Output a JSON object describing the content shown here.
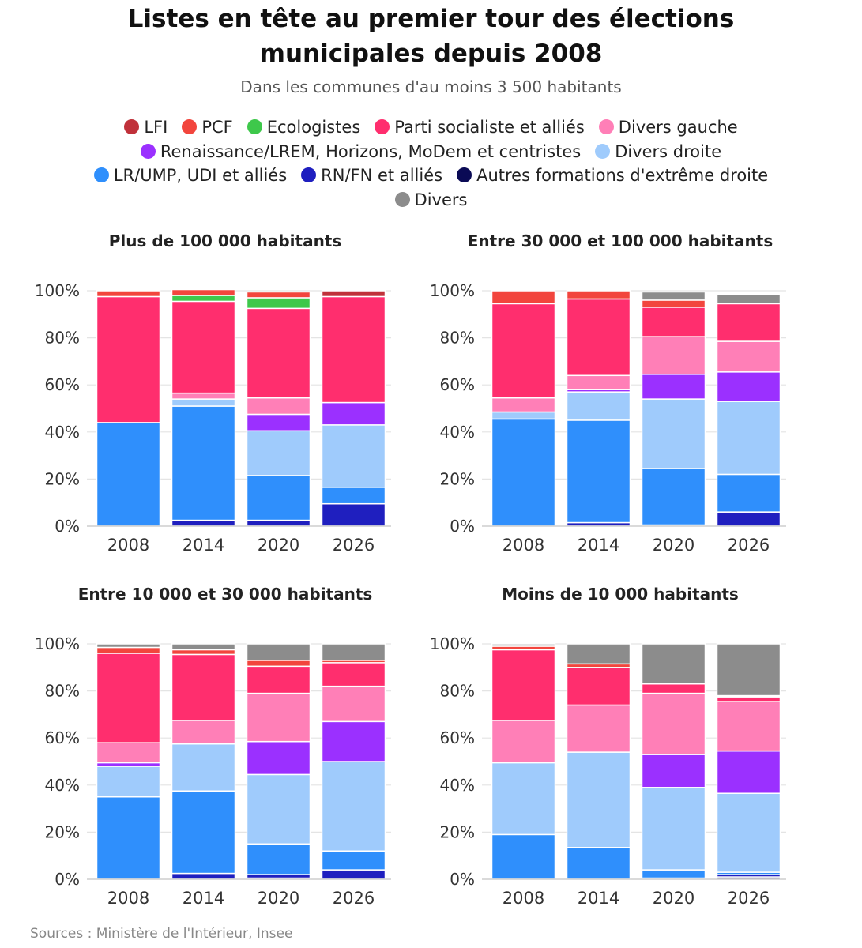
{
  "title_line1": "Listes en tête au premier tour des élections",
  "title_line2": "municipales depuis 2008",
  "subtitle": "Dans les communes d'au moins 3 500 habitants",
  "source": "Sources : Ministère de l'Intérieur, Insee",
  "legend": [
    {
      "label": "LFI",
      "color": "#c0313a"
    },
    {
      "label": "PCF",
      "color": "#f2453d"
    },
    {
      "label": "Ecologistes",
      "color": "#3ec84b"
    },
    {
      "label": "Parti socialiste et alliés",
      "color": "#ff2e6e"
    },
    {
      "label": "Divers gauche",
      "color": "#ff7fb7"
    },
    {
      "label": "Renaissance/LREM, Horizons, MoDem et centristes",
      "color": "#9b30ff"
    },
    {
      "label": "Divers droite",
      "color": "#9fcbfc"
    },
    {
      "label": "LR/UMP, UDI et alliés",
      "color": "#2f8ffc"
    },
    {
      "label": "RN/FN et alliés",
      "color": "#1f1fbf"
    },
    {
      "label": "Autres formations d'extrême droite",
      "color": "#0a0a55"
    },
    {
      "label": "Divers",
      "color": "#8c8c8c"
    }
  ],
  "chart_data": [
    {
      "type": "bar",
      "stacked": true,
      "title": "Plus de 100 000 habitants",
      "categories": [
        "2008",
        "2014",
        "2020",
        "2026"
      ],
      "ylim": [
        0,
        100
      ],
      "yticks": [
        "0%",
        "20%",
        "40%",
        "60%",
        "80%",
        "100%"
      ],
      "series": [
        {
          "name": "Autres formations d'extrême droite",
          "values": [
            0,
            0,
            0,
            0
          ]
        },
        {
          "name": "RN/FN et alliés",
          "values": [
            0,
            2.5,
            2.5,
            9.5
          ]
        },
        {
          "name": "LR/UMP, UDI et alliés",
          "values": [
            44,
            48.5,
            19,
            7
          ]
        },
        {
          "name": "Divers droite",
          "values": [
            0,
            3,
            19,
            26.5
          ]
        },
        {
          "name": "Renaissance/LREM, Horizons, MoDem et centristes",
          "values": [
            0,
            0,
            7,
            9.5
          ]
        },
        {
          "name": "Divers gauche",
          "values": [
            0,
            2.5,
            7,
            0
          ]
        },
        {
          "name": "Parti socialiste et alliés",
          "values": [
            53.5,
            39,
            38,
            45
          ]
        },
        {
          "name": "Ecologistes",
          "values": [
            0,
            2.5,
            4.5,
            0
          ]
        },
        {
          "name": "PCF",
          "values": [
            2.5,
            2.5,
            2.5,
            0
          ]
        },
        {
          "name": "LFI",
          "values": [
            0,
            0,
            0,
            2.5
          ]
        },
        {
          "name": "Divers",
          "values": [
            0,
            0,
            0,
            0
          ]
        }
      ]
    },
    {
      "type": "bar",
      "stacked": true,
      "title": "Entre 30 000 et 100 000 habitants",
      "categories": [
        "2008",
        "2014",
        "2020",
        "2026"
      ],
      "ylim": [
        0,
        100
      ],
      "yticks": [
        "0%",
        "20%",
        "40%",
        "60%",
        "80%",
        "100%"
      ],
      "series": [
        {
          "name": "Autres formations d'extrême droite",
          "values": [
            0,
            0,
            0,
            0
          ]
        },
        {
          "name": "RN/FN et alliés",
          "values": [
            0,
            1.5,
            0.5,
            6
          ]
        },
        {
          "name": "LR/UMP, UDI et alliés",
          "values": [
            45.5,
            43.5,
            24,
            16
          ]
        },
        {
          "name": "Divers droite",
          "values": [
            3,
            12,
            29.5,
            31
          ]
        },
        {
          "name": "Renaissance/LREM, Horizons, MoDem et centristes",
          "values": [
            0,
            1,
            10.5,
            12.5
          ]
        },
        {
          "name": "Divers gauche",
          "values": [
            6,
            6,
            16,
            13
          ]
        },
        {
          "name": "Parti socialiste et alliés",
          "values": [
            40,
            32.5,
            12.5,
            16
          ]
        },
        {
          "name": "Ecologistes",
          "values": [
            0,
            0,
            0,
            0
          ]
        },
        {
          "name": "PCF",
          "values": [
            5.5,
            3.5,
            3,
            0
          ]
        },
        {
          "name": "LFI",
          "values": [
            0,
            0,
            0,
            0
          ]
        },
        {
          "name": "Divers",
          "values": [
            0,
            0,
            3.5,
            4
          ]
        }
      ]
    },
    {
      "type": "bar",
      "stacked": true,
      "title": "Entre 10 000 et 30 000 habitants",
      "categories": [
        "2008",
        "2014",
        "2020",
        "2026"
      ],
      "ylim": [
        0,
        100
      ],
      "yticks": [
        "0%",
        "20%",
        "40%",
        "60%",
        "80%",
        "100%"
      ],
      "series": [
        {
          "name": "Autres formations d'extrême droite",
          "values": [
            0,
            0,
            0.5,
            0
          ]
        },
        {
          "name": "RN/FN et alliés",
          "values": [
            0,
            2.5,
            1.5,
            4
          ]
        },
        {
          "name": "LR/UMP, UDI et alliés",
          "values": [
            35,
            35,
            13,
            8
          ]
        },
        {
          "name": "Divers droite",
          "values": [
            13,
            20,
            29.5,
            38
          ]
        },
        {
          "name": "Renaissance/LREM, Horizons, MoDem et centristes",
          "values": [
            1.5,
            0,
            14,
            17
          ]
        },
        {
          "name": "Divers gauche",
          "values": [
            8.5,
            10,
            20.5,
            15
          ]
        },
        {
          "name": "Parti socialiste et alliés",
          "values": [
            38,
            28,
            11.5,
            10
          ]
        },
        {
          "name": "Ecologistes",
          "values": [
            0,
            0,
            0,
            0
          ]
        },
        {
          "name": "PCF",
          "values": [
            2.5,
            2,
            2.5,
            1
          ]
        },
        {
          "name": "LFI",
          "values": [
            0,
            0,
            0,
            0
          ]
        },
        {
          "name": "Divers",
          "values": [
            1.5,
            2.5,
            7,
            7
          ]
        }
      ]
    },
    {
      "type": "bar",
      "stacked": true,
      "title": "Moins de 10 000 habitants",
      "categories": [
        "2008",
        "2014",
        "2020",
        "2026"
      ],
      "ylim": [
        0,
        100
      ],
      "yticks": [
        "0%",
        "20%",
        "40%",
        "60%",
        "80%",
        "100%"
      ],
      "series": [
        {
          "name": "Autres formations d'extrême droite",
          "values": [
            0,
            0,
            0.3,
            1
          ]
        },
        {
          "name": "RN/FN et alliés",
          "values": [
            0,
            0,
            0.2,
            1
          ]
        },
        {
          "name": "LR/UMP, UDI et alliés",
          "values": [
            19,
            13.5,
            3.5,
            1
          ]
        },
        {
          "name": "Divers droite",
          "values": [
            30.5,
            40.5,
            35,
            33.5
          ]
        },
        {
          "name": "Renaissance/LREM, Horizons, MoDem et centristes",
          "values": [
            0,
            0,
            14,
            18
          ]
        },
        {
          "name": "Divers gauche",
          "values": [
            18,
            20,
            26,
            21
          ]
        },
        {
          "name": "Parti socialiste et alliés",
          "values": [
            30,
            16,
            4,
            2
          ]
        },
        {
          "name": "Ecologistes",
          "values": [
            0,
            0,
            0,
            0
          ]
        },
        {
          "name": "PCF",
          "values": [
            1.5,
            1.5,
            0,
            0
          ]
        },
        {
          "name": "LFI",
          "values": [
            0,
            0,
            0,
            0.5
          ]
        },
        {
          "name": "Divers",
          "values": [
            1,
            8.5,
            17,
            22
          ]
        }
      ]
    }
  ]
}
